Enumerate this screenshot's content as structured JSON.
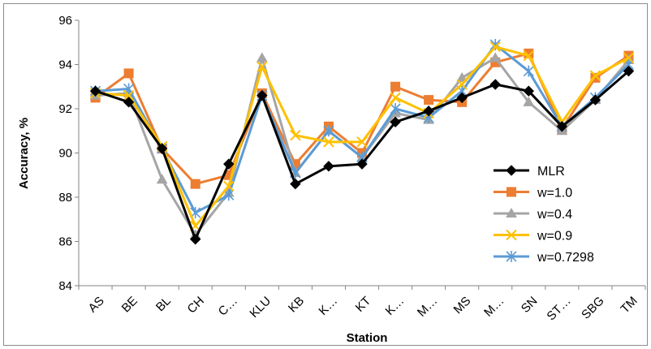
{
  "chart_data": {
    "type": "line",
    "xlabel": "Station",
    "ylabel": "Accuracy, %",
    "ylim": [
      84,
      96
    ],
    "yticks": [
      "84",
      "86",
      "88",
      "90",
      "92",
      "94",
      "96"
    ],
    "grid": false,
    "legend_position": "bottom-right",
    "categories": [
      "AS",
      "BE",
      "BL",
      "CH",
      "C…",
      "KLU",
      "KB",
      "K…",
      "KT",
      "K…",
      "M…",
      "MS",
      "M…",
      "SN",
      "ST…",
      "SBG",
      "TM"
    ],
    "series": [
      {
        "name": "MLR",
        "color": "#000000",
        "marker": "diamond",
        "values": [
          92.8,
          92.3,
          90.2,
          86.1,
          89.5,
          92.6,
          88.6,
          89.4,
          89.5,
          91.4,
          91.9,
          92.5,
          93.1,
          92.8,
          91.2,
          92.4,
          93.7
        ]
      },
      {
        "name": "w=1.0",
        "color": "#ed7d31",
        "marker": "square",
        "values": [
          92.5,
          93.6,
          90.2,
          88.6,
          89.0,
          92.7,
          89.5,
          91.2,
          90.0,
          93.0,
          92.4,
          92.3,
          94.1,
          94.5,
          91.1,
          93.4,
          94.4
        ]
      },
      {
        "name": "w=0.4",
        "color": "#a5a5a5",
        "marker": "triangle",
        "values": [
          92.6,
          92.7,
          88.8,
          86.3,
          88.2,
          94.3,
          89.1,
          91.0,
          89.8,
          91.8,
          91.5,
          93.4,
          94.3,
          92.3,
          91.0,
          92.4,
          94.2
        ]
      },
      {
        "name": "w=0.9",
        "color": "#ffc000",
        "marker": "x",
        "values": [
          92.7,
          92.6,
          90.3,
          86.7,
          88.5,
          93.9,
          90.8,
          90.5,
          90.5,
          92.5,
          91.8,
          93.1,
          94.8,
          94.4,
          91.4,
          93.5,
          94.3
        ]
      },
      {
        "name": "w=0.7298",
        "color": "#5b9bd5",
        "marker": "star",
        "values": [
          92.8,
          92.9,
          90.2,
          87.3,
          88.1,
          92.6,
          89.1,
          91.0,
          89.8,
          92.0,
          91.6,
          92.8,
          94.9,
          93.7,
          91.2,
          92.5,
          94.0
        ]
      }
    ]
  }
}
